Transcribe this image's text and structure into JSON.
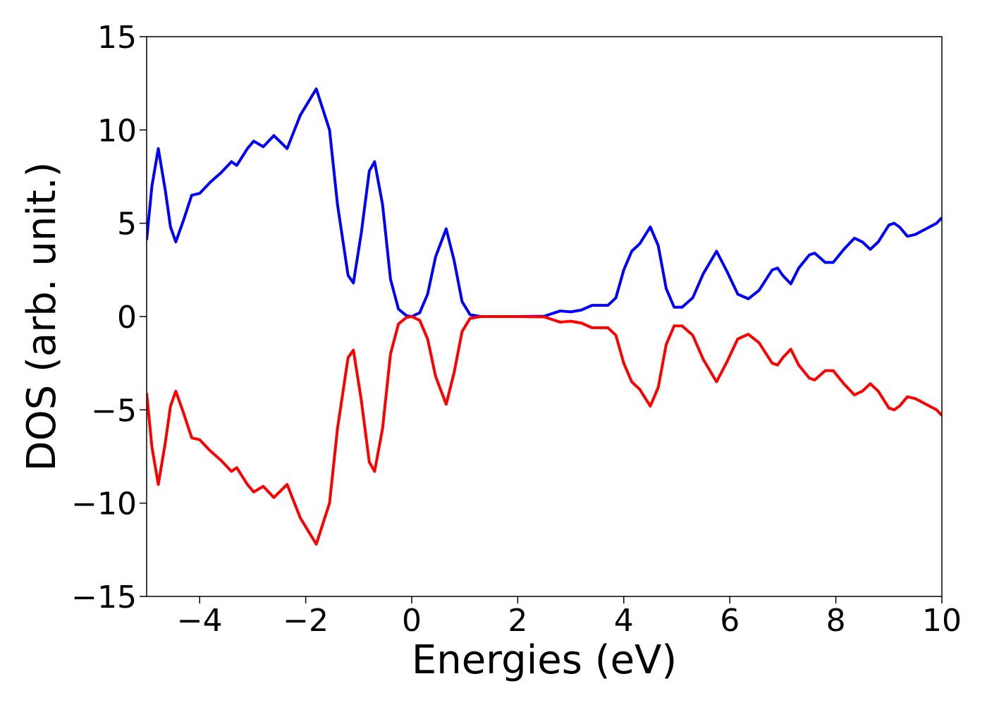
{
  "chart_data": {
    "type": "line",
    "xlabel": "Energies (eV)",
    "ylabel": "DOS (arb. unit.)",
    "x": [
      -5,
      -4.9,
      -4.78,
      -4.65,
      -4.55,
      -4.45,
      -4.3,
      -4.15,
      -4.0,
      -3.8,
      -3.6,
      -3.4,
      -3.3,
      -3.1,
      -2.98,
      -2.8,
      -2.6,
      -2.35,
      -2.1,
      -1.8,
      -1.55,
      -1.4,
      -1.2,
      -1.1,
      -0.95,
      -0.8,
      -0.7,
      -0.55,
      -0.4,
      -0.25,
      -0.1,
      0,
      0.15,
      0.3,
      0.45,
      0.65,
      0.8,
      0.95,
      1.1,
      1.3,
      2.0,
      2.5,
      2.8,
      3.0,
      3.2,
      3.4,
      3.7,
      3.85,
      4.0,
      4.15,
      4.3,
      4.5,
      4.65,
      4.8,
      4.95,
      5.1,
      5.3,
      5.5,
      5.75,
      5.95,
      6.15,
      6.35,
      6.55,
      6.8,
      6.9,
      7.0,
      7.15,
      7.3,
      7.5,
      7.6,
      7.8,
      7.95,
      8.15,
      8.35,
      8.5,
      8.65,
      8.8,
      9.0,
      9.1,
      9.2,
      9.35,
      9.5,
      9.7,
      9.9,
      10.0
    ],
    "series": [
      {
        "color": "#0000ff",
        "values": [
          4.1,
          7.0,
          9.0,
          6.8,
          4.8,
          4.0,
          5.2,
          6.5,
          6.6,
          7.2,
          7.7,
          8.3,
          8.1,
          9.0,
          9.4,
          9.1,
          9.7,
          9.0,
          10.8,
          12.2,
          10.0,
          6.0,
          2.2,
          1.8,
          4.5,
          7.8,
          8.3,
          6.0,
          2.0,
          0.4,
          0.05,
          0.0,
          0.2,
          1.2,
          3.2,
          4.7,
          3.0,
          0.8,
          0.1,
          0,
          0,
          0.02,
          0.3,
          0.25,
          0.35,
          0.6,
          0.6,
          1.0,
          2.5,
          3.5,
          3.9,
          4.8,
          3.8,
          1.5,
          0.5,
          0.5,
          1.0,
          2.3,
          3.5,
          2.4,
          1.2,
          0.95,
          1.4,
          2.5,
          2.6,
          2.2,
          1.75,
          2.6,
          3.3,
          3.4,
          2.9,
          2.9,
          3.6,
          4.2,
          4.0,
          3.6,
          4.0,
          4.9,
          5.0,
          4.8,
          4.3,
          4.4,
          4.7,
          5.0,
          5.3
        ]
      },
      {
        "color": "#ff0000",
        "values": [
          -4.1,
          -7.0,
          -9.0,
          -6.8,
          -4.8,
          -4.0,
          -5.2,
          -6.5,
          -6.6,
          -7.2,
          -7.7,
          -8.3,
          -8.1,
          -9.0,
          -9.4,
          -9.1,
          -9.7,
          -9.0,
          -10.8,
          -12.2,
          -10.0,
          -6.0,
          -2.2,
          -1.8,
          -4.5,
          -7.8,
          -8.3,
          -6.0,
          -2.0,
          -0.4,
          -0.05,
          0.0,
          -0.2,
          -1.2,
          -3.2,
          -4.7,
          -3.0,
          -0.8,
          -0.1,
          0,
          0,
          -0.02,
          -0.3,
          -0.25,
          -0.35,
          -0.6,
          -0.6,
          -1.0,
          -2.5,
          -3.5,
          -3.9,
          -4.8,
          -3.8,
          -1.5,
          -0.5,
          -0.5,
          -1.0,
          -2.3,
          -3.5,
          -2.4,
          -1.2,
          -0.95,
          -1.4,
          -2.5,
          -2.6,
          -2.2,
          -1.75,
          -2.6,
          -3.3,
          -3.4,
          -2.9,
          -2.9,
          -3.6,
          -4.2,
          -4.0,
          -3.6,
          -4.0,
          -4.9,
          -5.0,
          -4.8,
          -4.3,
          -4.4,
          -4.7,
          -5.0,
          -5.3
        ]
      }
    ],
    "xlim": [
      -5,
      10
    ],
    "xticks": [
      {
        "value": -4,
        "label": "−4"
      },
      {
        "value": -2,
        "label": "−2"
      },
      0,
      2,
      4,
      6,
      8,
      10
    ],
    "ylim": [
      -15,
      15
    ],
    "yticks": [
      {
        "value": -15,
        "label": "−15"
      },
      {
        "value": -10,
        "label": "−10"
      },
      {
        "value": -5,
        "label": "−5"
      },
      0,
      5,
      10,
      15
    ],
    "grid": false
  }
}
